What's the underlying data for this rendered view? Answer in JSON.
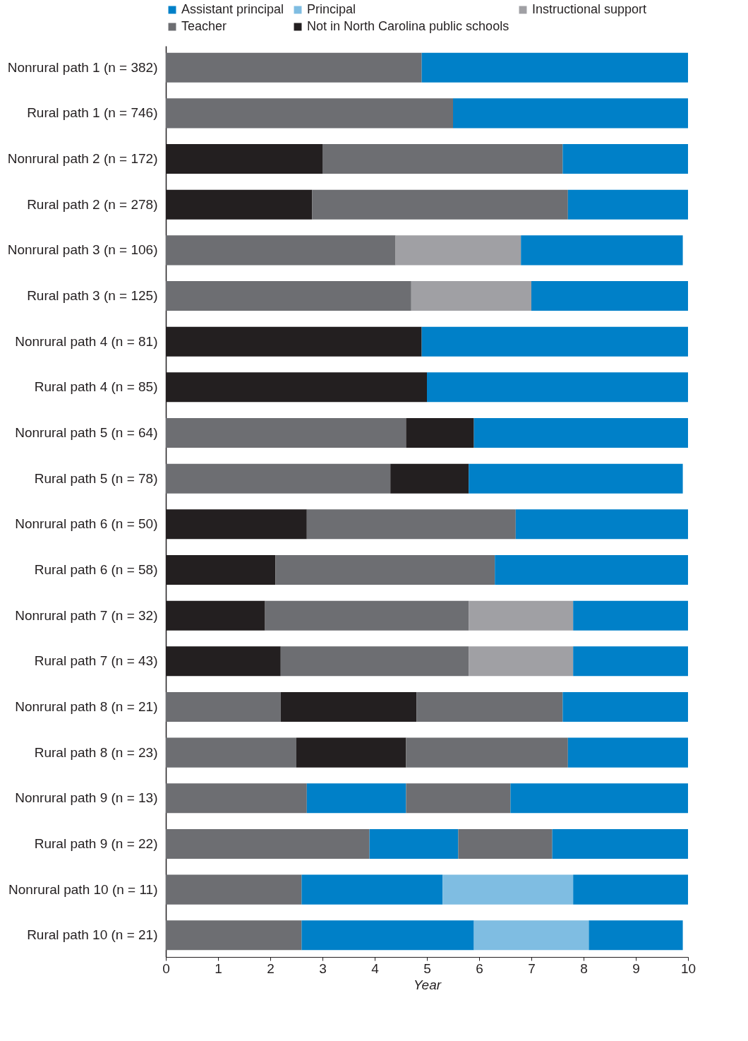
{
  "chart_data": {
    "type": "bar",
    "orientation": "horizontal",
    "stacked": true,
    "xlabel": "Year",
    "xlim": [
      0,
      10
    ],
    "xticks": [
      0,
      1,
      2,
      3,
      4,
      5,
      6,
      7,
      8,
      9,
      10
    ],
    "grid": false,
    "legend": "top right",
    "categories": [
      "Nonrural path 1 (n = 382)",
      "Rural path 1 (n = 746)",
      "Nonrural path 2 (n = 172)",
      "Rural path 2 (n = 278)",
      "Nonrural path 3 (n = 106)",
      "Rural path 3 (n = 125)",
      "Nonrural path 4 (n = 81)",
      "Rural path 4 (n = 85)",
      "Nonrural path 5 (n = 64)",
      "Rural path 5 (n = 78)",
      "Nonrural path 6 (n = 50)",
      "Rural path 6 (n = 58)",
      "Nonrural path 7 (n = 32)",
      "Rural path 7 (n = 43)",
      "Nonrural path 8 (n = 21)",
      "Rural path 8 (n = 23)",
      "Nonrural path 9 (n = 13)",
      "Rural path 9 (n = 22)",
      "Nonrural path 10 (n = 11)",
      "Rural path 10 (n = 21)"
    ],
    "series": [
      {
        "name": "Not in North Carolina public schools",
        "color": "#231f20",
        "values": [
          null,
          null,
          3.0,
          2.8,
          null,
          null,
          4.9,
          5.0,
          null,
          null,
          2.7,
          2.1,
          1.9,
          2.2,
          null,
          null,
          null,
          null,
          null,
          null
        ]
      },
      {
        "name": "Teacher",
        "color": "#6d6e72",
        "values": [
          4.9,
          5.5,
          4.6,
          4.9,
          4.4,
          4.7,
          null,
          null,
          4.6,
          4.3,
          4.0,
          4.2,
          3.9,
          3.6,
          2.2,
          2.5,
          2.7,
          3.9,
          2.6,
          2.6
        ]
      },
      {
        "color": "#231f20",
        "values": [
          null,
          null,
          null,
          null,
          null,
          null,
          null,
          null,
          1.3,
          1.5,
          null,
          null,
          null,
          null,
          2.6,
          2.1,
          null,
          null,
          null,
          null
        ]
      },
      {
        "color": "#0080c8",
        "values": [
          null,
          null,
          null,
          null,
          null,
          null,
          null,
          null,
          null,
          null,
          null,
          null,
          null,
          null,
          null,
          null,
          1.9,
          1.7,
          2.7,
          3.3
        ]
      },
      {
        "color": "#6d6e72",
        "values": [
          null,
          null,
          null,
          null,
          null,
          null,
          null,
          null,
          null,
          null,
          null,
          null,
          null,
          null,
          2.8,
          3.1,
          2.0,
          1.8,
          null,
          null
        ]
      },
      {
        "name": "Instructional support",
        "color": "#a0a0a4",
        "values": [
          null,
          null,
          null,
          null,
          2.4,
          2.3,
          null,
          null,
          null,
          null,
          null,
          null,
          2.0,
          2.0,
          null,
          null,
          null,
          null,
          null,
          null
        ]
      },
      {
        "name": "Principal",
        "color": "#7fbde2",
        "values": [
          null,
          null,
          null,
          null,
          null,
          null,
          null,
          null,
          null,
          null,
          null,
          null,
          null,
          null,
          null,
          null,
          null,
          null,
          2.5,
          2.2
        ]
      },
      {
        "name": "Assistant principal",
        "color": "#0080c8",
        "values": [
          5.1,
          4.5,
          2.4,
          2.3,
          3.1,
          3.0,
          5.1,
          5.0,
          4.1,
          4.1,
          3.3,
          3.7,
          2.2,
          2.2,
          2.4,
          2.3,
          3.4,
          2.6,
          2.2,
          1.8
        ]
      }
    ]
  }
}
